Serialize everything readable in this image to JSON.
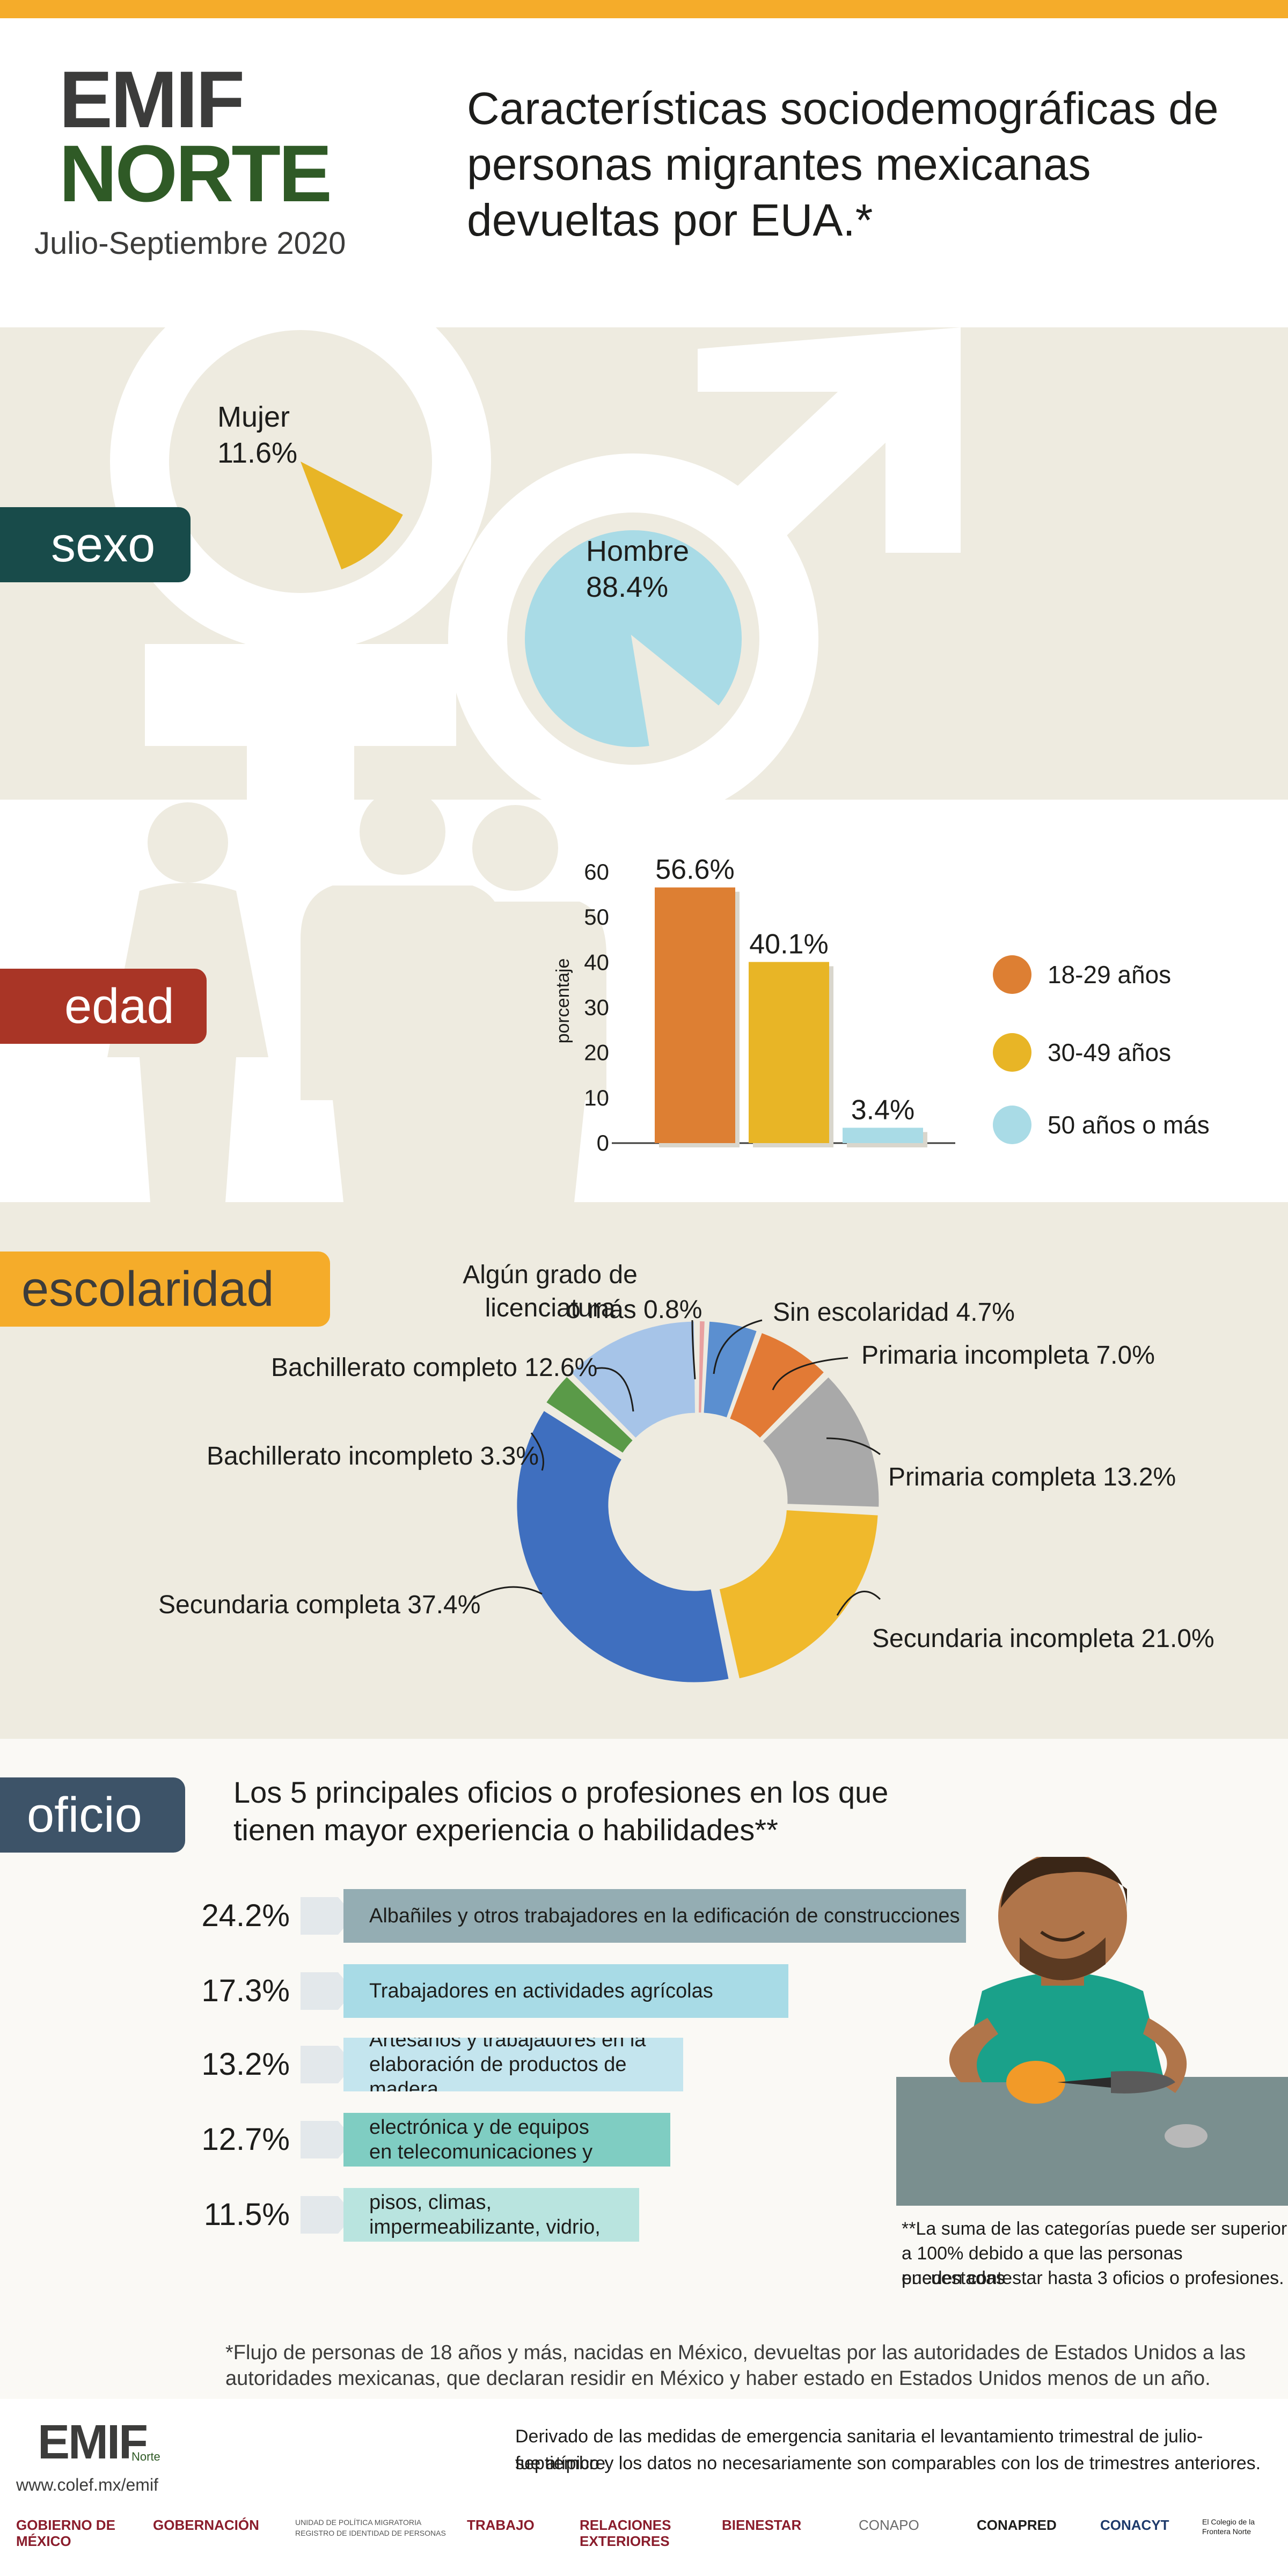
{
  "header": {
    "logo_line1": "EMIF",
    "logo_line2": "NORTE",
    "period": "Julio-Septiembre 2020",
    "title": "Características sociodemográficas de personas migrantes mexicanas devueltas por EUA.*"
  },
  "sections": {
    "sexo": "sexo",
    "edad": "edad",
    "escolaridad": "escolaridad",
    "oficio": "oficio"
  },
  "sexo": {
    "mujer_label": "Mujer",
    "mujer_pct": "11.6%",
    "hombre_label": "Hombre",
    "hombre_pct": "88.4%"
  },
  "edad": {
    "ylabel": "porcentaje",
    "legend": [
      "18-29 años",
      "30-49  años",
      "50 años o más"
    ]
  },
  "escolaridad": {
    "labels": {
      "lic_line1": "Algún grado de licenciatura",
      "lic_line2": "o más 0.8%",
      "sin": "Sin escolaridad 4.7%",
      "prim_inc": "Primaria incompleta 7.0%",
      "prim_comp": "Primaria completa 13.2%",
      "sec_inc": "Secundaria incompleta 21.0%",
      "sec_comp": "Secundaria completa 37.4%",
      "bach_inc": "Bachillerato incompleto 3.3%",
      "bach_comp": "Bachillerato completo 12.6%"
    }
  },
  "oficio": {
    "heading_line1": "Los 5 principales oficios o profesiones en los que",
    "heading_line2": "tienen mayor experiencia o habilidades**",
    "items": [
      {
        "pct": "24.2%",
        "line1": "Albañiles y otros trabajadores en la edificación de construcciones",
        "line2": ""
      },
      {
        "pct": "17.3%",
        "line1": "Trabajadores en actividades agrícolas",
        "line2": ""
      },
      {
        "pct": "13.2%",
        "line1": "Artesanos y trabajadores en la",
        "line2": "elaboración de productos de madera"
      },
      {
        "pct": "12.7%",
        "line1": "Técnicos eléctricos, en electrónica y de equipos",
        "line2": "en telecomunicaciones y electromecánicos"
      },
      {
        "pct": "11.5%",
        "line1": "Yeseros, instaladores de pisos, climas,",
        "line2": "impermeabilizante, vidrio, etc., plomeros y pintores"
      }
    ],
    "footnote2_line1": "**La suma de las categorías puede ser superior",
    "footnote2_line2": "a 100% debido a que las personas encuestadas",
    "footnote2_line3": "pueden contestar hasta 3 oficios o profesiones."
  },
  "footer": {
    "note_line1": "*Flujo de personas de 18 años y más, nacidas en México, devueltas por las autoridades de Estados Unidos a las",
    "note_line2": "autoridades mexicanas, que declaran residir en México y haber estado en Estados Unidos menos de un año.",
    "logo_small": "EMIF",
    "logo_small_sub": "Norte",
    "url": "www.colef.mx/emif",
    "derived_line1": "Derivado de las medidas de emergencia sanitaria el levantamiento trimestral de julio-septiembre",
    "derived_line2": "fue atípico y los datos no necesariamente son comparables con los de trimestres anteriores.",
    "institutions": [
      "GOBIERNO DE MÉXICO",
      "GOBERNACIÓN",
      "UNIDAD DE POLÍTICA MIGRATORIA REGISTRO DE IDENTIDAD DE PERSONAS",
      "TRABAJO",
      "RELACIONES EXTERIORES",
      "BIENESTAR",
      "CONAPO",
      "CONAPRED",
      "CONACYT",
      "El Colegio de la Frontera Norte"
    ]
  },
  "colors": {
    "orange": "#f5ac2a",
    "teal_dark": "#184b4a",
    "red": "#a93526",
    "slate": "#3d5368",
    "beige": "#eeebe0",
    "age_18_29": "#dd7f33",
    "age_30_49": "#e8b526",
    "age_50_plus": "#a9dbe6"
  },
  "chart_data": [
    {
      "type": "pie",
      "categories": [
        "Mujer",
        "Hombre"
      ],
      "values": [
        11.6,
        88.4
      ]
    },
    {
      "type": "bar",
      "categories": [
        "18-29 años",
        "30-49  años",
        "50 años o más"
      ],
      "values": [
        56.6,
        40.1,
        3.4
      ],
      "data_labels": [
        "56.6%",
        "40.1%",
        "3.4%"
      ],
      "ylabel": "porcentaje",
      "ylim": [
        0,
        60
      ],
      "yticks": [
        0,
        10,
        20,
        30,
        40,
        50,
        60
      ],
      "legend": "right"
    },
    {
      "type": "pie",
      "subtype": "donut",
      "categories": [
        "Algún grado de licenciatura o más",
        "Sin escolaridad",
        "Primaria incompleta",
        "Primaria completa",
        "Secundaria incompleta",
        "Secundaria completa",
        "Bachillerato incompleto",
        "Bachillerato completo"
      ],
      "values": [
        0.8,
        4.7,
        7.0,
        13.2,
        21.0,
        37.4,
        3.3,
        12.6
      ],
      "colors": [
        "#e8a0a0",
        "#5b8fd0",
        "#e27a35",
        "#a9a9a9",
        "#f0b92c",
        "#3f6fbf",
        "#5a9a48",
        "#a6c4e8"
      ]
    },
    {
      "type": "bar",
      "orientation": "horizontal",
      "categories": [
        "Albañiles y otros trabajadores en la edificación de construcciones",
        "Trabajadores en actividades agrícolas",
        "Artesanos y trabajadores en la elaboración de productos de madera",
        "Técnicos eléctricos, en electrónica y de equipos en telecomunicaciones y electromecánicos",
        "Yeseros, instaladores de pisos, climas, impermeabilizante, vidrio, etc., plomeros y pintores"
      ],
      "values": [
        24.2,
        17.3,
        13.2,
        12.7,
        11.5
      ],
      "colors": [
        "#94adb3",
        "#a8dbe6",
        "#c4e5ee",
        "#7fcdc2",
        "#b9e4df"
      ]
    }
  ]
}
